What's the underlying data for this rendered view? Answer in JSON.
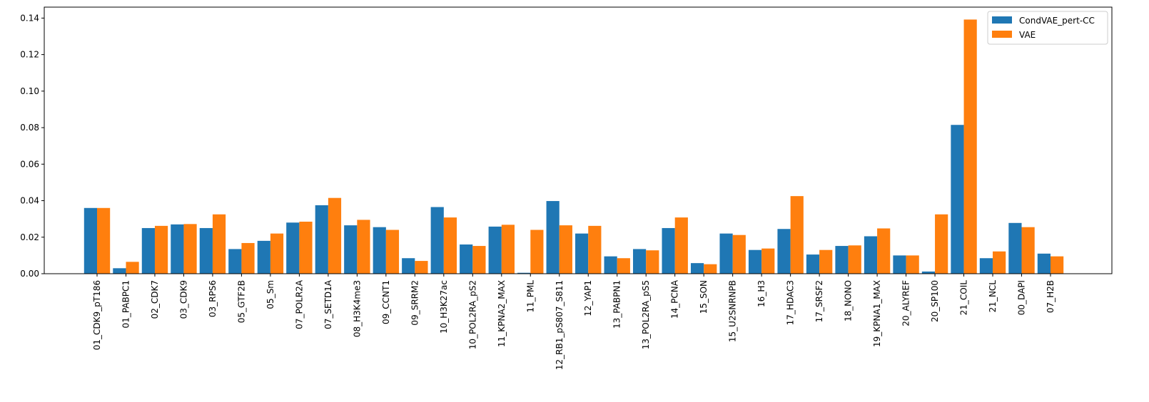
{
  "chart_data": {
    "type": "bar",
    "title": "",
    "xlabel": "",
    "ylabel": "",
    "ylim": [
      0,
      0.146
    ],
    "yticks": [
      0.0,
      0.02,
      0.04,
      0.06,
      0.08,
      0.1,
      0.12,
      0.14
    ],
    "ytick_labels": [
      "0.00",
      "0.02",
      "0.04",
      "0.06",
      "0.08",
      "0.10",
      "0.12",
      "0.14"
    ],
    "grid": false,
    "legend_position": "top-right",
    "categories": [
      "01_CDK9_pT186",
      "01_PABPC1",
      "02_CDK7",
      "03_CDK9",
      "03_RPS6",
      "05_GTF2B",
      "05_Sm",
      "07_POLR2A",
      "07_SETD1A",
      "08_H3K4me3",
      "09_CCNT1",
      "09_SRRM2",
      "10_H3K27ac",
      "10_POL2RA_pS2",
      "11_KPNA2_MAX",
      "11_PML",
      "12_RB1_pS807_S811",
      "12_YAP1",
      "13_PABPN1",
      "13_POL2RA_pS5",
      "14_PCNA",
      "15_SON",
      "15_U2SNRNPB",
      "16_H3",
      "17_HDAC3",
      "17_SRSF2",
      "18_NONO",
      "19_KPNA1_MAX",
      "20_ALYREF",
      "20_SP100",
      "21_COIL",
      "21_NCL",
      "00_DAPI",
      "07_H2B"
    ],
    "series": [
      {
        "name": "CondVAE_pert-CC",
        "color": "#1f77b4",
        "values": [
          0.036,
          0.003,
          0.025,
          0.027,
          0.025,
          0.0135,
          0.018,
          0.028,
          0.0375,
          0.0265,
          0.0255,
          0.0085,
          0.0365,
          0.016,
          0.0258,
          0.0005,
          0.0398,
          0.022,
          0.0095,
          0.0135,
          0.025,
          0.0058,
          0.022,
          0.013,
          0.0245,
          0.0105,
          0.0152,
          0.0205,
          0.01,
          0.0012,
          0.0815,
          0.0085,
          0.0278,
          0.011
        ]
      },
      {
        "name": "VAE",
        "color": "#ff7f0e",
        "values": [
          0.036,
          0.0065,
          0.0262,
          0.0272,
          0.0325,
          0.0168,
          0.022,
          0.0285,
          0.0415,
          0.0295,
          0.024,
          0.007,
          0.0308,
          0.0152,
          0.0268,
          0.024,
          0.0265,
          0.0262,
          0.0085,
          0.0128,
          0.0308,
          0.0052,
          0.0212,
          0.0138,
          0.0425,
          0.013,
          0.0155,
          0.0248,
          0.01,
          0.0325,
          0.1392,
          0.0122,
          0.0255,
          0.0095
        ]
      }
    ]
  }
}
